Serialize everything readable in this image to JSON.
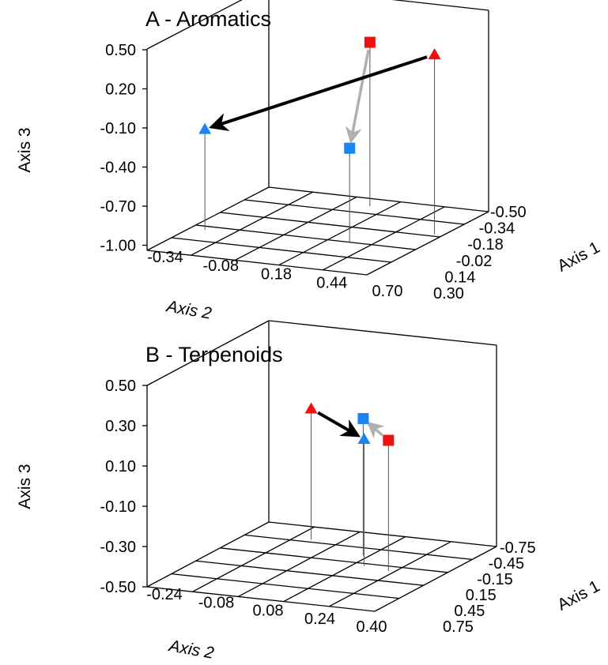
{
  "colors": {
    "red": "#ee1111",
    "blue": "#1a85f0",
    "black_arrow": "#000000",
    "gray_arrow": "#b0b0b0"
  },
  "chart_data": [
    {
      "type": "scatter3d",
      "title": "A - Aromatics",
      "axis1_label": "Axis 1",
      "axis2_label": "Axis 2",
      "axis3_label": "Axis 3",
      "axis1_ticks": [
        "-0.50",
        "-0.34",
        "-0.18",
        "-0.02",
        "0.14",
        "0.30"
      ],
      "axis2_ticks": [
        "-0.34",
        "-0.08",
        "0.18",
        "0.44",
        "0.70"
      ],
      "axis3_ticks": [
        "0.50",
        "0.20",
        "-0.10",
        "-0.40",
        "-0.70",
        "-1.00"
      ],
      "axis1_range": [
        -0.5,
        0.3
      ],
      "axis2_range": [
        -0.47,
        0.83
      ],
      "axis3_range": [
        -1.0,
        0.5
      ],
      "points": [
        {
          "shape": "square",
          "color": "red",
          "axis1": -0.42,
          "axis2": 0.2,
          "axis3": 0.22
        },
        {
          "shape": "square",
          "color": "blue",
          "axis1": -0.02,
          "axis2": 0.44,
          "axis3": -0.3
        },
        {
          "shape": "triangle",
          "color": "red",
          "axis1": -0.2,
          "axis2": 0.78,
          "axis3": 0.34
        },
        {
          "shape": "triangle",
          "color": "blue",
          "axis1": 0.02,
          "axis2": -0.38,
          "axis3": -0.25
        }
      ],
      "arrows": [
        {
          "from": 0,
          "to": 1,
          "color": "gray_arrow"
        },
        {
          "from": 2,
          "to": 3,
          "color": "black_arrow"
        }
      ]
    },
    {
      "type": "scatter3d",
      "title": "B - Terpenoids",
      "axis1_label": "Axis 1",
      "axis2_label": "Axis 2",
      "axis3_label": "Axis 3",
      "axis1_ticks": [
        "-0.75",
        "-0.45",
        "-0.15",
        "0.15",
        "0.45",
        "0.75"
      ],
      "axis2_ticks": [
        "-0.24",
        "-0.08",
        "0.08",
        "0.24",
        "0.40"
      ],
      "axis3_ticks": [
        "0.50",
        "0.30",
        "0.10",
        "-0.10",
        "-0.30",
        "-0.50"
      ],
      "axis1_range": [
        -0.75,
        0.75
      ],
      "axis2_range": [
        -0.32,
        0.48
      ],
      "axis3_range": [
        -0.5,
        0.5
      ],
      "points": [
        {
          "shape": "triangle",
          "color": "red",
          "axis1": -0.5,
          "axis2": -0.1,
          "axis3": 0.15
        },
        {
          "shape": "triangle",
          "color": "blue",
          "axis1": -0.1,
          "axis2": 0.2,
          "axis3": 0.13
        },
        {
          "shape": "square",
          "color": "blue",
          "axis1": -0.3,
          "axis2": 0.14,
          "axis3": 0.18
        },
        {
          "shape": "square",
          "color": "red",
          "axis1": -0.05,
          "axis2": 0.3,
          "axis3": 0.15
        }
      ],
      "arrows": [
        {
          "from": 0,
          "to": 1,
          "color": "black_arrow"
        },
        {
          "from": 3,
          "to": 2,
          "color": "gray_arrow"
        }
      ]
    }
  ]
}
